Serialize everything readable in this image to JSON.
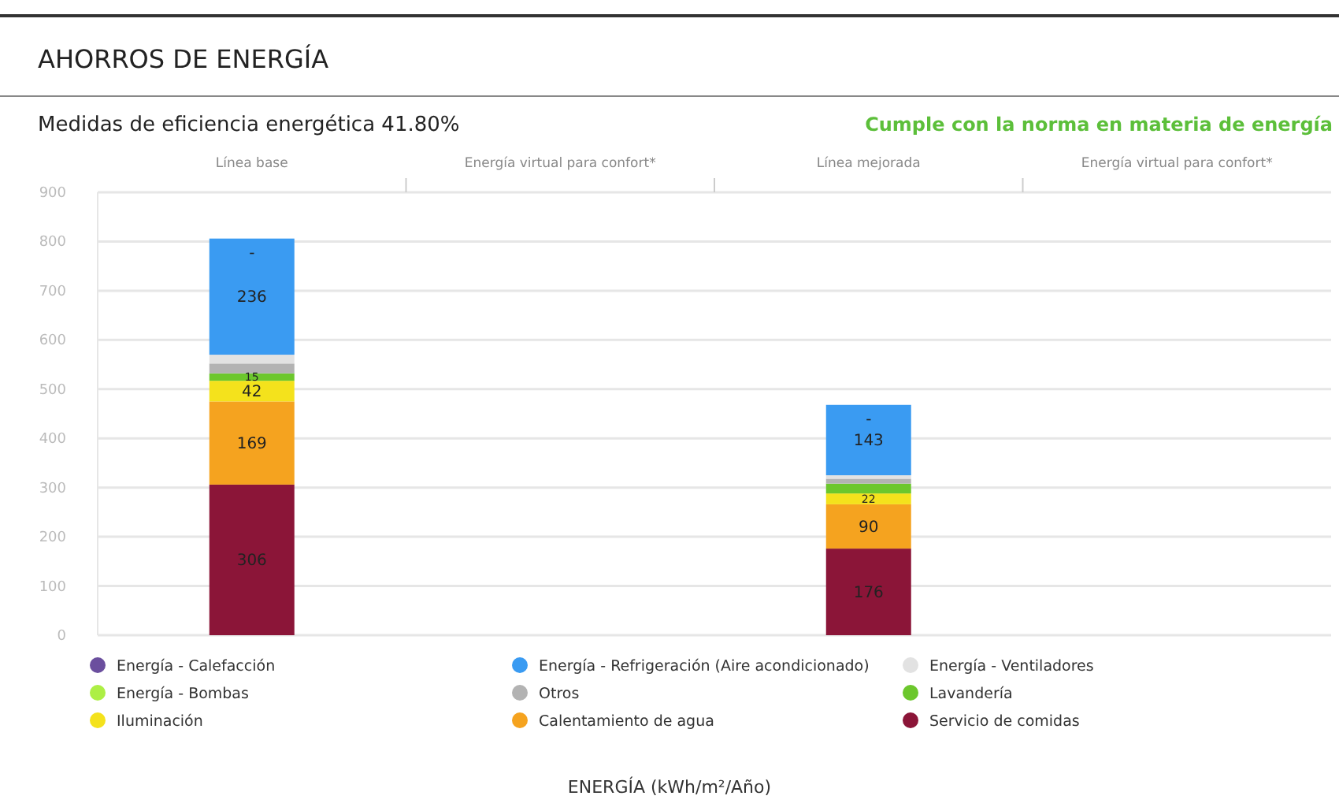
{
  "chart_data": {
    "type": "bar",
    "stacked": true,
    "title": "AHORROS DE ENERGÍA",
    "subtitle": "Medidas de eficiencia energética 41.80%",
    "annotations": [
      "Cumple con la norma en materia de energía",
      "ENERGÍA (kWh/m²/Año)"
    ],
    "categories": [
      "Línea base",
      "Energía virtual para confort*",
      "Línea mejorada",
      "Energía virtual para confort*"
    ],
    "ylim": [
      0,
      900
    ],
    "yticks": [
      0,
      100,
      200,
      300,
      400,
      500,
      600,
      700,
      800,
      900
    ],
    "grid": "y",
    "legend": "bottom",
    "series": [
      {
        "name": "Servicio de comidas",
        "color": "#8b1538",
        "values": [
          306,
          null,
          176,
          null
        ],
        "value_labels": [
          "306",
          null,
          "176",
          null
        ]
      },
      {
        "name": "Calentamiento de agua",
        "color": "#f5a31f",
        "values": [
          169,
          null,
          90,
          null
        ],
        "value_labels": [
          "169",
          null,
          "90",
          null
        ]
      },
      {
        "name": "Iluminación",
        "color": "#f4e21c",
        "values": [
          42,
          null,
          22,
          null
        ],
        "value_labels": [
          "42",
          null,
          "22",
          null
        ]
      },
      {
        "name": "Lavandería",
        "color": "#6cc72d",
        "values": [
          15,
          null,
          20,
          null
        ],
        "value_labels": [
          "15",
          null,
          null,
          null
        ]
      },
      {
        "name": "Otros",
        "color": "#b3b3b3",
        "values": [
          20,
          null,
          10,
          null
        ]
      },
      {
        "name": "Energía - Bombas",
        "color": "#adef45",
        "values": [
          null,
          null,
          null,
          null
        ]
      },
      {
        "name": "Energía - Ventiladores",
        "color": "#e2e2e2",
        "values": [
          18,
          null,
          7,
          null
        ]
      },
      {
        "name": "Energía - Refrigeración (Aire acondicionado)",
        "color": "#3a9bf2",
        "values": [
          236,
          null,
          143,
          null
        ],
        "value_labels": [
          "236",
          null,
          "143",
          null
        ]
      },
      {
        "name": "Energía - Calefacción",
        "color": "#6b4f9e",
        "values": [
          0,
          null,
          0,
          null
        ],
        "value_labels": [
          "-",
          null,
          "-",
          null
        ]
      }
    ]
  }
}
